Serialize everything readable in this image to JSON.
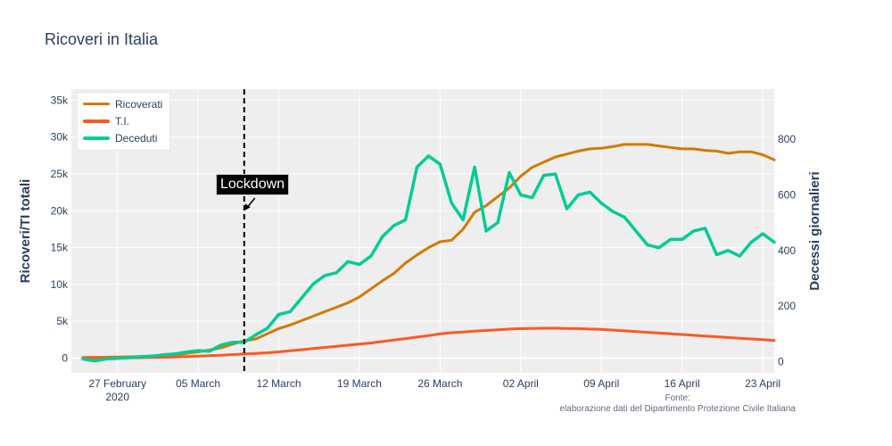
{
  "title": "Ricoveri in Italia",
  "source_note": [
    "Fonte:",
    "elaborazione dati del Dipartimento Protezione Civile Italiana"
  ],
  "annotation": {
    "text": "Lockdown",
    "x": "2020-03-09",
    "y": 20000
  },
  "chart_data": {
    "type": "line",
    "title": "Ricoveri in Italia",
    "xlabel": "",
    "ylabel": "Ricoveri/TI totali",
    "y2label": "Decessi giornalieri",
    "xlim": [
      "2020-02-23",
      "2020-04-24"
    ],
    "ylim": [
      -2000,
      36500
    ],
    "y2lim": [
      -40,
      980
    ],
    "x_ticks": [
      {
        "date": "2020-02-27",
        "label": "27 February",
        "sublabel": "2020"
      },
      {
        "date": "2020-03-05",
        "label": "05 March"
      },
      {
        "date": "2020-03-12",
        "label": "12 March"
      },
      {
        "date": "2020-03-19",
        "label": "19 March"
      },
      {
        "date": "2020-03-26",
        "label": "26 March"
      },
      {
        "date": "2020-04-02",
        "label": "02 April"
      },
      {
        "date": "2020-04-09",
        "label": "09 April"
      },
      {
        "date": "2020-04-16",
        "label": "16 April"
      },
      {
        "date": "2020-04-23",
        "label": "23 April"
      }
    ],
    "y_ticks": [
      {
        "value": 0,
        "label": "0"
      },
      {
        "value": 5000,
        "label": "5k"
      },
      {
        "value": 10000,
        "label": "10k"
      },
      {
        "value": 15000,
        "label": "15k"
      },
      {
        "value": 20000,
        "label": "20k"
      },
      {
        "value": 25000,
        "label": "25k"
      },
      {
        "value": 30000,
        "label": "30k"
      },
      {
        "value": 35000,
        "label": "35k"
      }
    ],
    "y2_ticks": [
      {
        "value": 0,
        "label": "0"
      },
      {
        "value": 200,
        "label": "200"
      },
      {
        "value": 400,
        "label": "400"
      },
      {
        "value": 600,
        "label": "600"
      },
      {
        "value": 800,
        "label": "800"
      }
    ],
    "vline": {
      "x": "2020-03-09",
      "style": "dashed"
    },
    "grid": true,
    "legend_position": "top-left",
    "x": [
      "2020-02-24",
      "2020-02-25",
      "2020-02-26",
      "2020-02-27",
      "2020-02-28",
      "2020-02-29",
      "2020-03-01",
      "2020-03-02",
      "2020-03-03",
      "2020-03-04",
      "2020-03-05",
      "2020-03-06",
      "2020-03-07",
      "2020-03-08",
      "2020-03-09",
      "2020-03-10",
      "2020-03-11",
      "2020-03-12",
      "2020-03-13",
      "2020-03-14",
      "2020-03-15",
      "2020-03-16",
      "2020-03-17",
      "2020-03-18",
      "2020-03-19",
      "2020-03-20",
      "2020-03-21",
      "2020-03-22",
      "2020-03-23",
      "2020-03-24",
      "2020-03-25",
      "2020-03-26",
      "2020-03-27",
      "2020-03-28",
      "2020-03-29",
      "2020-03-30",
      "2020-03-31",
      "2020-04-01",
      "2020-04-02",
      "2020-04-03",
      "2020-04-04",
      "2020-04-05",
      "2020-04-06",
      "2020-04-07",
      "2020-04-08",
      "2020-04-09",
      "2020-04-10",
      "2020-04-11",
      "2020-04-12",
      "2020-04-13",
      "2020-04-14",
      "2020-04-15",
      "2020-04-16",
      "2020-04-17",
      "2020-04-18",
      "2020-04-19",
      "2020-04-20",
      "2020-04-21",
      "2020-04-22",
      "2020-04-23",
      "2020-04-24"
    ],
    "series": [
      {
        "name": "Ricoverati",
        "axis": "y",
        "color": "#d17a00",
        "values": [
          100,
          110,
          120,
          150,
          180,
          200,
          250,
          320,
          450,
          650,
          850,
          1100,
          1400,
          1900,
          2350,
          2600,
          3300,
          4000,
          4500,
          5100,
          5700,
          6300,
          6900,
          7500,
          8300,
          9400,
          10500,
          11500,
          12900,
          14000,
          15000,
          15800,
          16000,
          17500,
          19800,
          20700,
          21900,
          23100,
          24700,
          25900,
          26600,
          27300,
          27700,
          28100,
          28400,
          28500,
          28700,
          29000,
          29000,
          29000,
          28800,
          28600,
          28400,
          28400,
          28200,
          28100,
          27800,
          28000,
          28000,
          27600,
          26900
        ]
      },
      {
        "name": "T.I.",
        "axis": "y",
        "color": "#ff5722",
        "values": [
          30,
          35,
          40,
          45,
          50,
          60,
          80,
          110,
          150,
          200,
          250,
          320,
          400,
          480,
          560,
          640,
          730,
          850,
          1000,
          1150,
          1300,
          1450,
          1600,
          1750,
          1900,
          2050,
          2250,
          2450,
          2650,
          2850,
          3050,
          3300,
          3450,
          3550,
          3650,
          3750,
          3850,
          3950,
          4000,
          4030,
          4050,
          4050,
          4030,
          4000,
          3950,
          3900,
          3800,
          3700,
          3600,
          3500,
          3400,
          3300,
          3200,
          3100,
          3000,
          2900,
          2800,
          2700,
          2600,
          2500,
          2400
        ]
      },
      {
        "name": "Deceduti",
        "axis": "y2",
        "color": "#00cc96",
        "values": [
          10,
          3,
          10,
          12,
          15,
          18,
          20,
          25,
          28,
          35,
          40,
          38,
          60,
          70,
          70,
          97,
          120,
          170,
          180,
          230,
          280,
          310,
          320,
          360,
          350,
          380,
          450,
          490,
          510,
          700,
          740,
          710,
          570,
          510,
          700,
          470,
          500,
          680,
          600,
          590,
          670,
          675,
          550,
          600,
          610,
          570,
          540,
          520,
          470,
          420,
          410,
          440,
          440,
          470,
          480,
          385,
          400,
          380,
          430,
          460,
          430
        ]
      }
    ]
  }
}
